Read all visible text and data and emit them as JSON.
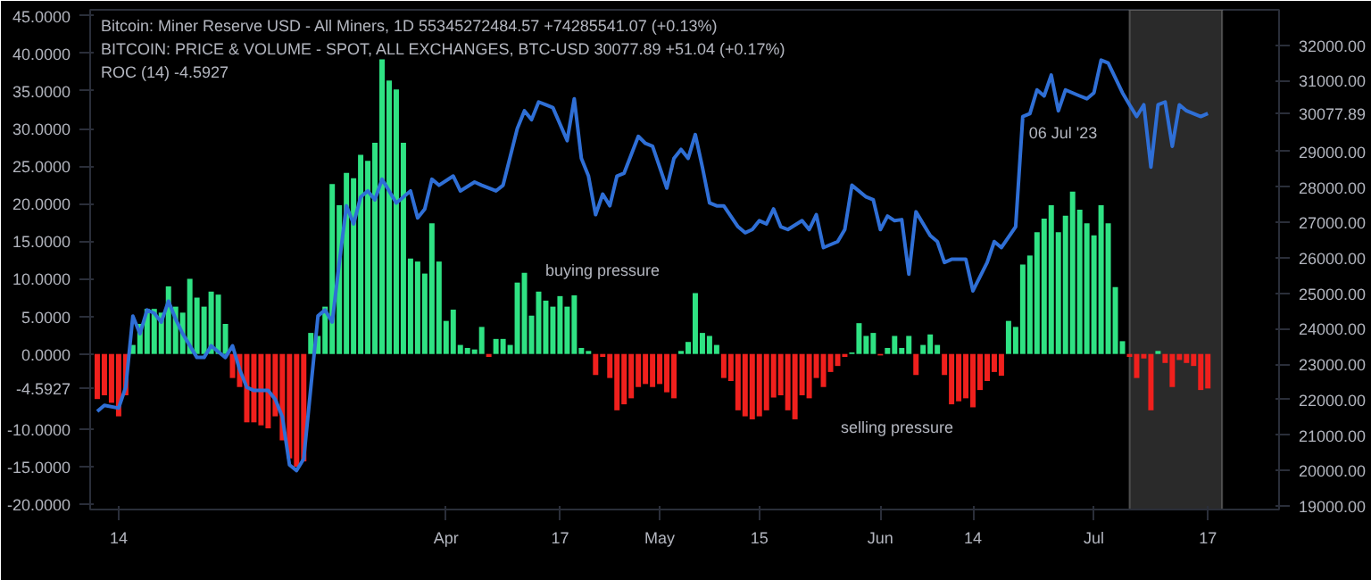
{
  "chart_data": {
    "type": "bar",
    "xlim": [
      "2023-02-10",
      "2023-07-27"
    ],
    "xticks": [
      {
        "value": "2023-02-14",
        "label": "14"
      },
      {
        "value": "2023-04-01",
        "label": "Apr"
      },
      {
        "value": "2023-04-17",
        "label": "17"
      },
      {
        "value": "2023-05-01",
        "label": "May"
      },
      {
        "value": "2023-05-15",
        "label": "15"
      },
      {
        "value": "2023-06-01",
        "label": "Jun"
      },
      {
        "value": "2023-06-14",
        "label": "14"
      },
      {
        "value": "2023-07-01",
        "label": "Jul"
      },
      {
        "value": "2023-07-17",
        "label": "17"
      }
    ],
    "ylim": [
      -20.7,
      45.8
    ],
    "yticks": [
      {
        "value": -20,
        "label": "-20.0000"
      },
      {
        "value": -15,
        "label": "-15.0000"
      },
      {
        "value": -10,
        "label": "-10.0000"
      },
      {
        "value": -4.5927,
        "label": "-4.5927"
      },
      {
        "value": 0,
        "label": "0.0000"
      },
      {
        "value": 5,
        "label": "5.0000"
      },
      {
        "value": 10,
        "label": "10.0000"
      },
      {
        "value": 15,
        "label": "15.0000"
      },
      {
        "value": 20,
        "label": "20.0000"
      },
      {
        "value": 25,
        "label": "25.0000"
      },
      {
        "value": 30,
        "label": "30.0000"
      },
      {
        "value": 35,
        "label": "35.0000"
      },
      {
        "value": 40,
        "label": "40.0000"
      },
      {
        "value": 45,
        "label": "45.0000"
      }
    ],
    "y2lim": [
      18900,
      33000
    ],
    "y2ticks": [
      {
        "value": 19000,
        "label": "19000.00"
      },
      {
        "value": 20000,
        "label": "20000.00"
      },
      {
        "value": 21000,
        "label": "21000.00"
      },
      {
        "value": 22000,
        "label": "22000.00"
      },
      {
        "value": 23000,
        "label": "23000.00"
      },
      {
        "value": 24000,
        "label": "24000.00"
      },
      {
        "value": 25000,
        "label": "25000.00"
      },
      {
        "value": 26000,
        "label": "26000.00"
      },
      {
        "value": 27000,
        "label": "27000.00"
      },
      {
        "value": 28000,
        "label": "28000.00"
      },
      {
        "value": 29000,
        "label": "29000.00"
      },
      {
        "value": 30077.89,
        "label": "30077.89"
      },
      {
        "value": 31000,
        "label": "31000.00"
      },
      {
        "value": 32000,
        "label": "32000.00"
      }
    ],
    "bands": [
      {
        "axis": "x",
        "from": "2023-07-06",
        "to": "2023-07-19",
        "color": "#2a2a2a"
      }
    ],
    "annotations": [
      "Bitcoin: Miner Reserve USD - All Miners, 1D   55345272484.57  +74285541.07 (+0.13%)",
      "BITCOIN: PRICE & VOLUME - SPOT, ALL EXCHANGES, BTC-USD   30077.89  +51.04 (+0.17%)",
      "ROC (14)  -4.5927",
      "buying pressure",
      "selling pressure",
      "06 Jul '23"
    ],
    "series": [
      {
        "x": [
          "2023-02-11",
          "2023-02-12",
          "2023-02-13",
          "2023-02-14",
          "2023-02-15",
          "2023-02-16",
          "2023-02-17",
          "2023-02-18",
          "2023-02-19",
          "2023-02-20",
          "2023-02-21",
          "2023-02-22",
          "2023-02-23",
          "2023-02-24",
          "2023-02-25",
          "2023-02-26",
          "2023-02-27",
          "2023-02-28",
          "2023-03-01",
          "2023-03-02",
          "2023-03-03",
          "2023-03-04",
          "2023-03-05",
          "2023-03-06",
          "2023-03-07",
          "2023-03-08",
          "2023-03-09",
          "2023-03-10",
          "2023-03-11",
          "2023-03-12",
          "2023-03-13",
          "2023-03-14",
          "2023-03-15",
          "2023-03-16",
          "2023-03-17",
          "2023-03-18",
          "2023-03-19",
          "2023-03-20",
          "2023-03-21",
          "2023-03-22",
          "2023-03-23",
          "2023-03-24",
          "2023-03-25",
          "2023-03-26",
          "2023-03-27",
          "2023-03-28",
          "2023-03-29",
          "2023-03-30",
          "2023-03-31",
          "2023-04-01",
          "2023-04-02",
          "2023-04-03",
          "2023-04-04",
          "2023-04-05",
          "2023-04-06",
          "2023-04-07",
          "2023-04-08",
          "2023-04-09",
          "2023-04-10",
          "2023-04-11",
          "2023-04-12",
          "2023-04-13",
          "2023-04-14",
          "2023-04-15",
          "2023-04-16",
          "2023-04-17",
          "2023-04-18",
          "2023-04-19",
          "2023-04-20",
          "2023-04-21",
          "2023-04-22",
          "2023-04-23",
          "2023-04-24",
          "2023-04-25",
          "2023-04-26",
          "2023-04-27",
          "2023-04-28",
          "2023-04-29",
          "2023-04-30",
          "2023-05-01",
          "2023-05-02",
          "2023-05-03",
          "2023-05-04",
          "2023-05-05",
          "2023-05-06",
          "2023-05-07",
          "2023-05-08",
          "2023-05-09",
          "2023-05-10",
          "2023-05-11",
          "2023-05-12",
          "2023-05-13",
          "2023-05-14",
          "2023-05-15",
          "2023-05-16",
          "2023-05-17",
          "2023-05-18",
          "2023-05-19",
          "2023-05-20",
          "2023-05-21",
          "2023-05-22",
          "2023-05-23",
          "2023-05-24",
          "2023-05-25",
          "2023-05-26",
          "2023-05-27",
          "2023-05-28",
          "2023-05-29",
          "2023-05-30",
          "2023-05-31",
          "2023-06-01",
          "2023-06-02",
          "2023-06-03",
          "2023-06-04",
          "2023-06-05",
          "2023-06-06",
          "2023-06-07",
          "2023-06-08",
          "2023-06-09",
          "2023-06-10",
          "2023-06-11",
          "2023-06-12",
          "2023-06-13",
          "2023-06-14",
          "2023-06-15",
          "2023-06-16",
          "2023-06-17",
          "2023-06-18",
          "2023-06-19",
          "2023-06-20",
          "2023-06-21",
          "2023-06-22",
          "2023-06-23",
          "2023-06-24",
          "2023-06-25",
          "2023-06-26",
          "2023-06-27",
          "2023-06-28",
          "2023-06-29",
          "2023-06-30",
          "2023-07-01",
          "2023-07-02",
          "2023-07-03",
          "2023-07-04",
          "2023-07-05",
          "2023-07-06",
          "2023-07-07",
          "2023-07-08",
          "2023-07-09",
          "2023-07-10",
          "2023-07-11",
          "2023-07-12",
          "2023-07-13",
          "2023-07-14",
          "2023-07-15",
          "2023-07-16",
          "2023-07-17"
        ],
        "values": [
          -6,
          -5.5,
          -6.5,
          -8.3,
          -5.5,
          1.2,
          4,
          6,
          6,
          5.5,
          9,
          6.3,
          5.5,
          10,
          7.5,
          6.3,
          8.3,
          7.9,
          4,
          -3.2,
          -4.4,
          -9.1,
          -9.1,
          -9.5,
          -9.9,
          -8.3,
          -11.5,
          -13.9,
          -15,
          -14.3,
          2.8,
          2.4,
          6.3,
          22.6,
          19.8,
          24.1,
          23.4,
          26.5,
          25.7,
          28.1,
          39.2,
          36.4,
          35.2,
          28.1,
          12.7,
          12.3,
          10.7,
          17.4,
          12.3,
          4.4,
          5.9,
          1.2,
          0.8,
          0.6,
          3.6,
          -0.4,
          2,
          2,
          1.2,
          9.5,
          10.8,
          5.1,
          8.3,
          7.1,
          6.3,
          7.7,
          6.3,
          7.8,
          0.8,
          0.4,
          -2.8,
          -0.4,
          -3.2,
          -7.5,
          -6.7,
          -5.9,
          -4.4,
          -4,
          -4.4,
          -4,
          -5.1,
          -5.9,
          0.4,
          1.6,
          8.1,
          2.8,
          2.4,
          1.2,
          -3.2,
          -3.6,
          -7.5,
          -8.3,
          -8.7,
          -8.3,
          -7.5,
          -5.8,
          -5.5,
          -7.5,
          -8.7,
          -5.5,
          -5.9,
          -3.2,
          -4.4,
          -2.4,
          -1.6,
          -0.4,
          0.2,
          4.1,
          2.4,
          2.8,
          -0.2,
          0.8,
          2.4,
          0.8,
          2.4,
          -2.8,
          1.2,
          2.6,
          1.2,
          -2.8,
          -6.7,
          -6.3,
          -5.9,
          -7.1,
          -4.8,
          -3.6,
          -2.4,
          -2.9,
          4.4,
          3.6,
          11.9,
          13.1,
          16.2,
          18,
          19.8,
          16.2,
          18.4,
          21.6,
          19.2,
          17.4,
          15.8,
          19.8,
          17.4,
          8.9,
          1.7,
          -0.4,
          -3.2,
          -0.6,
          -7.5,
          0.4,
          -1.2,
          -4.4,
          -0.8,
          -1.2,
          -1.6,
          -4.8,
          -4.5927
        ],
        "colors": [
          "#f0201d",
          "#f0201d",
          "#f0201d",
          "#f0201d",
          "#f0201d",
          "#2fe283",
          "#2fe283",
          "#2fe283",
          "#2fe283",
          "#2fe283",
          "#2fe283",
          "#2fe283",
          "#2fe283",
          "#2fe283",
          "#2fe283",
          "#2fe283",
          "#2fe283",
          "#2fe283",
          "#2fe283",
          "#f0201d",
          "#f0201d",
          "#f0201d",
          "#f0201d",
          "#f0201d",
          "#f0201d",
          "#f0201d",
          "#f0201d",
          "#f0201d",
          "#f0201d",
          "#f0201d",
          "#2fe283",
          "#2fe283",
          "#2fe283",
          "#2fe283",
          "#2fe283",
          "#2fe283",
          "#2fe283",
          "#2fe283",
          "#2fe283",
          "#2fe283",
          "#2fe283",
          "#2fe283",
          "#2fe283",
          "#2fe283",
          "#2fe283",
          "#2fe283",
          "#2fe283",
          "#2fe283",
          "#2fe283",
          "#2fe283",
          "#2fe283",
          "#2fe283",
          "#2fe283",
          "#2fe283",
          "#2fe283",
          "#f0201d",
          "#2fe283",
          "#2fe283",
          "#2fe283",
          "#2fe283",
          "#2fe283",
          "#2fe283",
          "#2fe283",
          "#2fe283",
          "#2fe283",
          "#2fe283",
          "#2fe283",
          "#2fe283",
          "#2fe283",
          "#2fe283",
          "#f0201d",
          "#f0201d",
          "#f0201d",
          "#f0201d",
          "#f0201d",
          "#f0201d",
          "#f0201d",
          "#f0201d",
          "#f0201d",
          "#f0201d",
          "#f0201d",
          "#f0201d",
          "#2fe283",
          "#2fe283",
          "#2fe283",
          "#2fe283",
          "#2fe283",
          "#2fe283",
          "#f0201d",
          "#f0201d",
          "#f0201d",
          "#f0201d",
          "#f0201d",
          "#f0201d",
          "#f0201d",
          "#f0201d",
          "#f0201d",
          "#f0201d",
          "#f0201d",
          "#f0201d",
          "#f0201d",
          "#f0201d",
          "#f0201d",
          "#f0201d",
          "#f0201d",
          "#f0201d",
          "#2fe283",
          "#2fe283",
          "#2fe283",
          "#2fe283",
          "#f0201d",
          "#2fe283",
          "#2fe283",
          "#2fe283",
          "#2fe283",
          "#f0201d",
          "#2fe283",
          "#2fe283",
          "#2fe283",
          "#f0201d",
          "#f0201d",
          "#f0201d",
          "#f0201d",
          "#f0201d",
          "#f0201d",
          "#f0201d",
          "#f0201d",
          "#f0201d",
          "#2fe283",
          "#2fe283",
          "#2fe283",
          "#2fe283",
          "#2fe283",
          "#2fe283",
          "#2fe283",
          "#2fe283",
          "#2fe283",
          "#2fe283",
          "#2fe283",
          "#2fe283",
          "#2fe283",
          "#2fe283",
          "#2fe283",
          "#2fe283",
          "#2fe283",
          "#f0201d",
          "#f0201d",
          "#f0201d",
          "#f0201d",
          "#2fe283",
          "#f0201d",
          "#f0201d",
          "#f0201d",
          "#f0201d",
          "#f0201d",
          "#f0201d",
          "#f0201d"
        ]
      },
      {
        "type": "line",
        "axis": "y2",
        "color": "#2f6fd6",
        "x": [
          "2023-02-11",
          "2023-02-12",
          "2023-02-14",
          "2023-02-15",
          "2023-02-16",
          "2023-02-17",
          "2023-02-18",
          "2023-02-19",
          "2023-02-20",
          "2023-02-21",
          "2023-02-22",
          "2023-02-23",
          "2023-02-25",
          "2023-02-26",
          "2023-02-27",
          "2023-02-28",
          "2023-03-01",
          "2023-03-02",
          "2023-03-03",
          "2023-03-04",
          "2023-03-05",
          "2023-03-07",
          "2023-03-08",
          "2023-03-09",
          "2023-03-10",
          "2023-03-11",
          "2023-03-12",
          "2023-03-13",
          "2023-03-14",
          "2023-03-15",
          "2023-03-16",
          "2023-03-17",
          "2023-03-18",
          "2023-03-19",
          "2023-03-20",
          "2023-03-21",
          "2023-03-22",
          "2023-03-23",
          "2023-03-25",
          "2023-03-26",
          "2023-03-27",
          "2023-03-28",
          "2023-03-29",
          "2023-03-30",
          "2023-03-31",
          "2023-04-02",
          "2023-04-03",
          "2023-04-05",
          "2023-04-06",
          "2023-04-08",
          "2023-04-09",
          "2023-04-11",
          "2023-04-12",
          "2023-04-13",
          "2023-04-14",
          "2023-04-15",
          "2023-04-16",
          "2023-04-18",
          "2023-04-19",
          "2023-04-20",
          "2023-04-21",
          "2023-04-22",
          "2023-04-23",
          "2023-04-24",
          "2023-04-25",
          "2023-04-26",
          "2023-04-28",
          "2023-04-29",
          "2023-04-30",
          "2023-05-02",
          "2023-05-03",
          "2023-05-04",
          "2023-05-05",
          "2023-05-06",
          "2023-05-07",
          "2023-05-08",
          "2023-05-09",
          "2023-05-10",
          "2023-05-12",
          "2023-05-13",
          "2023-05-14",
          "2023-05-15",
          "2023-05-16",
          "2023-05-17",
          "2023-05-18",
          "2023-05-19",
          "2023-05-21",
          "2023-05-22",
          "2023-05-23",
          "2023-05-24",
          "2023-05-26",
          "2023-05-27",
          "2023-05-28",
          "2023-05-30",
          "2023-05-31",
          "2023-06-01",
          "2023-06-02",
          "2023-06-03",
          "2023-06-04",
          "2023-06-05",
          "2023-06-06",
          "2023-06-08",
          "2023-06-09",
          "2023-06-10",
          "2023-06-11",
          "2023-06-13",
          "2023-06-14",
          "2023-06-16",
          "2023-06-17",
          "2023-06-18",
          "2023-06-20",
          "2023-06-21",
          "2023-06-22",
          "2023-06-23",
          "2023-06-24",
          "2023-06-25",
          "2023-06-26",
          "2023-06-27",
          "2023-06-29",
          "2023-06-30",
          "2023-07-01",
          "2023-07-02",
          "2023-07-03",
          "2023-07-05",
          "2023-07-06",
          "2023-07-07",
          "2023-07-08",
          "2023-07-09",
          "2023-07-10",
          "2023-07-11",
          "2023-07-12",
          "2023-07-13",
          "2023-07-14",
          "2023-07-16",
          "2023-07-17"
        ],
        "values": [
          21670,
          21840,
          21760,
          22350,
          24360,
          23860,
          24530,
          24440,
          24190,
          24780,
          24280,
          23860,
          23190,
          23190,
          23520,
          23350,
          23190,
          23520,
          22850,
          22350,
          22260,
          22260,
          22010,
          21510,
          20160,
          20000,
          20330,
          22350,
          24360,
          24530,
          24190,
          25870,
          27470,
          26960,
          27720,
          27890,
          27640,
          28220,
          27550,
          27720,
          27890,
          27130,
          27380,
          28220,
          28050,
          28310,
          27890,
          28140,
          28050,
          27890,
          28050,
          29650,
          30150,
          29900,
          30400,
          30320,
          30240,
          29310,
          30490,
          28810,
          28310,
          27220,
          27800,
          27470,
          28310,
          28390,
          29430,
          29230,
          29150,
          27970,
          28810,
          29060,
          28810,
          29480,
          28560,
          27550,
          27470,
          27470,
          26880,
          26710,
          26800,
          27050,
          26960,
          27380,
          26880,
          26800,
          27050,
          26800,
          27220,
          26290,
          26460,
          26800,
          28050,
          27720,
          27640,
          26800,
          27180,
          27050,
          27080,
          25540,
          27300,
          26630,
          26460,
          25870,
          25960,
          25960,
          25070,
          25870,
          26460,
          26290,
          26880,
          29990,
          30070,
          30740,
          30570,
          31160,
          30150,
          30740,
          30570,
          30490,
          30660,
          31580,
          31500,
          30660,
          30320,
          29990,
          30320,
          28560,
          30320,
          30400,
          29150,
          30320,
          30150,
          29990,
          30077.89
        ]
      }
    ]
  }
}
